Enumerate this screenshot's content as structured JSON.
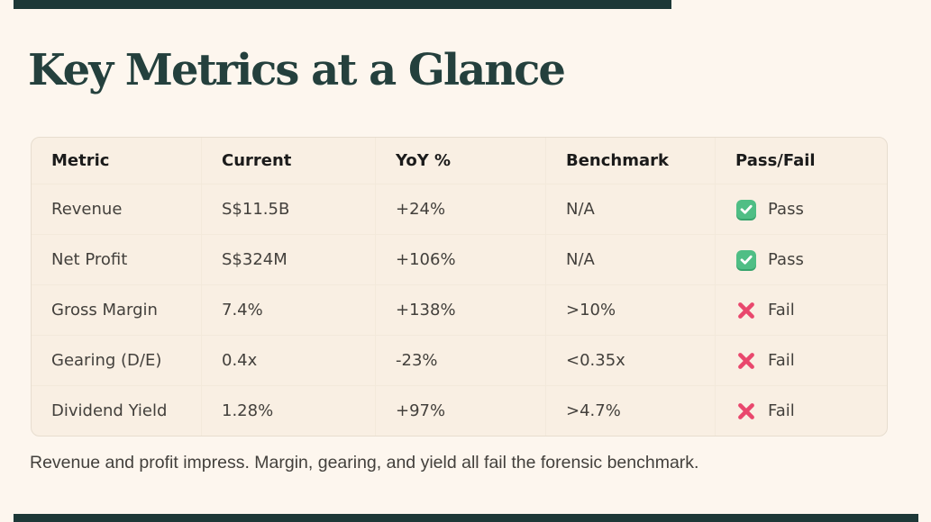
{
  "page": {
    "title": "Key Metrics at a Glance",
    "summary": "Revenue and profit impress. Margin, gearing, and yield all fail the forensic benchmark."
  },
  "colors": {
    "background": "#fdf6ee",
    "table_background": "#f9efe3",
    "table_border": "#e7ddcf",
    "row_divider": "#f3e9db",
    "title_text": "#24403d",
    "header_text": "#1b1b1b",
    "body_text": "#43403c",
    "accent_bar": "#1d3837",
    "pass_green": "#4fbe85",
    "pass_green_shadow": "#37a36c",
    "fail_pink": "#e9476d",
    "check_white": "#ffffff"
  },
  "table": {
    "columns": [
      "Metric",
      "Current",
      "YoY %",
      "Benchmark",
      "Pass/Fail"
    ],
    "rows": [
      {
        "metric": "Revenue",
        "current": "S$11.5B",
        "yoy": "+24%",
        "benchmark": "N/A",
        "status": "pass",
        "status_label": "Pass"
      },
      {
        "metric": "Net Profit",
        "current": "S$324M",
        "yoy": "+106%",
        "benchmark": "N/A",
        "status": "pass",
        "status_label": "Pass"
      },
      {
        "metric": "Gross Margin",
        "current": "7.4%",
        "yoy": "+138%",
        "benchmark": ">10%",
        "status": "fail",
        "status_label": "Fail"
      },
      {
        "metric": "Gearing (D/E)",
        "current": "0.4x",
        "yoy": "-23%",
        "benchmark": "<0.35x",
        "status": "fail",
        "status_label": "Fail"
      },
      {
        "metric": "Dividend Yield",
        "current": "1.28%",
        "yoy": "+97%",
        "benchmark": ">4.7%",
        "status": "fail",
        "status_label": "Fail"
      }
    ]
  }
}
